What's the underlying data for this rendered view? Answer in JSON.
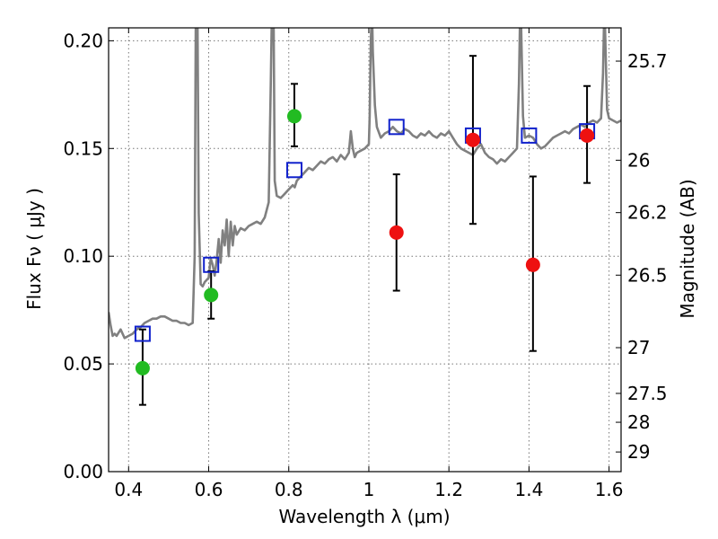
{
  "chart_data": {
    "type": "scatter",
    "xlabel": "Wavelength  λ (μm)",
    "ylabel": "Flux  Fν  ( μJy )",
    "ylabel_right": "Magnitude (AB)",
    "xlim": [
      0.35,
      1.63
    ],
    "ylim": [
      0.0,
      0.206
    ],
    "x_ticks": [
      0.4,
      0.6,
      0.8,
      1.0,
      1.2,
      1.4,
      1.6
    ],
    "x_tick_labels": [
      "0.4",
      "0.6",
      "0.8",
      "1",
      "1.2",
      "1.4",
      "1.6"
    ],
    "y_ticks": [
      0.0,
      0.05,
      0.1,
      0.15,
      0.2
    ],
    "y_tick_labels": [
      "0.00",
      "0.05",
      "0.10",
      "0.15",
      "0.20"
    ],
    "right_ticks": [
      {
        "mag": 25.7,
        "label": "25.7"
      },
      {
        "mag": 26.0,
        "label": "26"
      },
      {
        "mag": 26.2,
        "label": "26.2"
      },
      {
        "mag": 26.5,
        "label": "26.5"
      },
      {
        "mag": 27.0,
        "label": "27"
      },
      {
        "mag": 27.5,
        "label": "27.5"
      },
      {
        "mag": 28.0,
        "label": "28"
      },
      {
        "mag": 29.0,
        "label": "29"
      }
    ],
    "grid": true,
    "colors": {
      "model": "#808080",
      "optical": "#22bb22",
      "nir": "#ee1111",
      "model_band": "#1122cc",
      "errorbar": "#000000"
    },
    "series": [
      {
        "name": "model-spectrum",
        "kind": "line",
        "x": [
          0.35,
          0.355,
          0.36,
          0.365,
          0.37,
          0.38,
          0.39,
          0.4,
          0.41,
          0.42,
          0.43,
          0.44,
          0.45,
          0.46,
          0.47,
          0.48,
          0.49,
          0.5,
          0.51,
          0.52,
          0.53,
          0.54,
          0.55,
          0.56,
          0.565,
          0.568,
          0.57,
          0.572,
          0.575,
          0.58,
          0.585,
          0.59,
          0.6,
          0.605,
          0.61,
          0.615,
          0.62,
          0.625,
          0.63,
          0.635,
          0.64,
          0.645,
          0.65,
          0.655,
          0.66,
          0.665,
          0.67,
          0.68,
          0.69,
          0.7,
          0.71,
          0.72,
          0.73,
          0.74,
          0.75,
          0.755,
          0.758,
          0.76,
          0.762,
          0.765,
          0.77,
          0.78,
          0.79,
          0.8,
          0.81,
          0.815,
          0.82,
          0.83,
          0.84,
          0.85,
          0.86,
          0.87,
          0.88,
          0.89,
          0.9,
          0.91,
          0.92,
          0.93,
          0.94,
          0.95,
          0.955,
          0.96,
          0.965,
          0.97,
          0.98,
          0.99,
          1.0,
          1.002,
          1.005,
          1.008,
          1.01,
          1.015,
          1.02,
          1.03,
          1.04,
          1.05,
          1.06,
          1.07,
          1.08,
          1.09,
          1.1,
          1.11,
          1.12,
          1.13,
          1.14,
          1.15,
          1.16,
          1.17,
          1.18,
          1.19,
          1.2,
          1.21,
          1.22,
          1.23,
          1.24,
          1.25,
          1.26,
          1.27,
          1.28,
          1.29,
          1.3,
          1.31,
          1.32,
          1.33,
          1.34,
          1.35,
          1.36,
          1.37,
          1.375,
          1.378,
          1.38,
          1.385,
          1.39,
          1.4,
          1.41,
          1.42,
          1.43,
          1.44,
          1.45,
          1.46,
          1.47,
          1.48,
          1.49,
          1.5,
          1.51,
          1.52,
          1.53,
          1.54,
          1.55,
          1.56,
          1.57,
          1.58,
          1.585,
          1.588,
          1.59,
          1.595,
          1.6,
          1.61,
          1.62,
          1.63
        ],
        "y": [
          0.074,
          0.068,
          0.063,
          0.064,
          0.063,
          0.066,
          0.062,
          0.063,
          0.064,
          0.066,
          0.067,
          0.069,
          0.07,
          0.071,
          0.071,
          0.072,
          0.072,
          0.071,
          0.07,
          0.07,
          0.069,
          0.069,
          0.068,
          0.069,
          0.1,
          0.215,
          0.22,
          0.215,
          0.12,
          0.087,
          0.086,
          0.088,
          0.09,
          0.099,
          0.096,
          0.091,
          0.098,
          0.108,
          0.097,
          0.112,
          0.105,
          0.117,
          0.1,
          0.116,
          0.105,
          0.114,
          0.11,
          0.113,
          0.112,
          0.114,
          0.115,
          0.116,
          0.115,
          0.118,
          0.125,
          0.18,
          0.215,
          0.22,
          0.215,
          0.135,
          0.128,
          0.127,
          0.129,
          0.131,
          0.133,
          0.132,
          0.135,
          0.137,
          0.139,
          0.141,
          0.14,
          0.142,
          0.144,
          0.143,
          0.145,
          0.146,
          0.144,
          0.147,
          0.145,
          0.148,
          0.158,
          0.15,
          0.146,
          0.148,
          0.149,
          0.15,
          0.152,
          0.165,
          0.2,
          0.215,
          0.195,
          0.17,
          0.16,
          0.155,
          0.157,
          0.158,
          0.16,
          0.158,
          0.157,
          0.159,
          0.158,
          0.156,
          0.155,
          0.157,
          0.156,
          0.158,
          0.156,
          0.155,
          0.157,
          0.156,
          0.158,
          0.155,
          0.152,
          0.15,
          0.149,
          0.148,
          0.147,
          0.15,
          0.152,
          0.148,
          0.146,
          0.145,
          0.143,
          0.145,
          0.144,
          0.146,
          0.148,
          0.15,
          0.18,
          0.215,
          0.21,
          0.165,
          0.155,
          0.156,
          0.155,
          0.152,
          0.15,
          0.151,
          0.153,
          0.155,
          0.156,
          0.157,
          0.158,
          0.157,
          0.159,
          0.16,
          0.161,
          0.16,
          0.162,
          0.163,
          0.162,
          0.164,
          0.185,
          0.215,
          0.205,
          0.168,
          0.164,
          0.163,
          0.162,
          0.163
        ]
      },
      {
        "name": "optical-photometry",
        "kind": "points",
        "points": [
          {
            "x": 0.435,
            "y": 0.048,
            "yerr_low": 0.031,
            "yerr_high": 0.066
          },
          {
            "x": 0.606,
            "y": 0.082,
            "yerr_low": 0.071,
            "yerr_high": 0.093
          },
          {
            "x": 0.814,
            "y": 0.165,
            "yerr_low": 0.151,
            "yerr_high": 0.18
          }
        ]
      },
      {
        "name": "nir-photometry",
        "kind": "points",
        "points": [
          {
            "x": 1.069,
            "y": 0.111,
            "yerr_low": 0.084,
            "yerr_high": 0.138
          },
          {
            "x": 1.26,
            "y": 0.154,
            "yerr_low": 0.115,
            "yerr_high": 0.193
          },
          {
            "x": 1.41,
            "y": 0.096,
            "yerr_low": 0.056,
            "yerr_high": 0.137
          },
          {
            "x": 1.545,
            "y": 0.156,
            "yerr_low": 0.134,
            "yerr_high": 0.179
          }
        ]
      },
      {
        "name": "model-band-flux",
        "kind": "squares",
        "points": [
          {
            "x": 0.435,
            "y": 0.064
          },
          {
            "x": 0.606,
            "y": 0.096
          },
          {
            "x": 0.814,
            "y": 0.14
          },
          {
            "x": 1.069,
            "y": 0.16
          },
          {
            "x": 1.26,
            "y": 0.156
          },
          {
            "x": 1.4,
            "y": 0.156
          },
          {
            "x": 1.545,
            "y": 0.158
          }
        ]
      }
    ]
  }
}
